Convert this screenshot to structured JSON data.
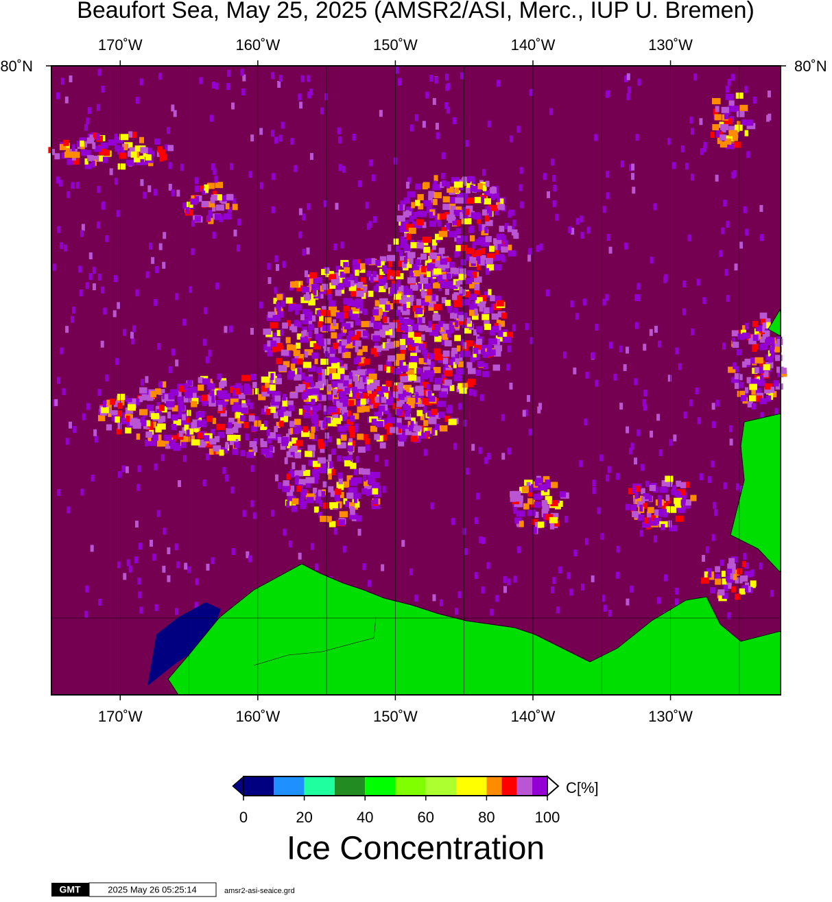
{
  "map": {
    "title": "Beaufort Sea, May 25, 2025 (AMSR2/ASI, Merc., IUP U. Bremen)",
    "lonlim": [
      -175,
      -122
    ],
    "lonticks": [
      {
        "value": -170,
        "label": "170˚W"
      },
      {
        "value": -160,
        "label": "160˚W"
      },
      {
        "value": -150,
        "label": "150˚W"
      },
      {
        "value": -140,
        "label": "140˚W"
      },
      {
        "value": -130,
        "label": "130˚W"
      }
    ],
    "grid_lons": [
      -170,
      -165,
      -160,
      -155,
      -150,
      -145,
      -140,
      -135,
      -130,
      -125
    ],
    "latticks": [
      {
        "value": 80,
        "label": "80˚N"
      }
    ],
    "colorbar": {
      "label": "C[%]",
      "title": "Ice Concentration",
      "lim": [
        0,
        100
      ],
      "ticks": [
        0,
        20,
        40,
        60,
        80,
        100
      ],
      "bounds": [
        0,
        10,
        20,
        30,
        40,
        50,
        60,
        70,
        80,
        85,
        90,
        95,
        100
      ],
      "colors": [
        "#000080",
        "#1e90ff",
        "#20ffa0",
        "#228b22",
        "#00ff00",
        "#7fff00",
        "#adff2f",
        "#ffff00",
        "#ff8c00",
        "#ff0000",
        "#ba55d3",
        "#9400d3"
      ]
    },
    "footer": {
      "logo": "GMT",
      "timestamp": "2025 May 26 05:25:14",
      "file": "amsr2-asi-seaice.grd"
    }
  }
}
